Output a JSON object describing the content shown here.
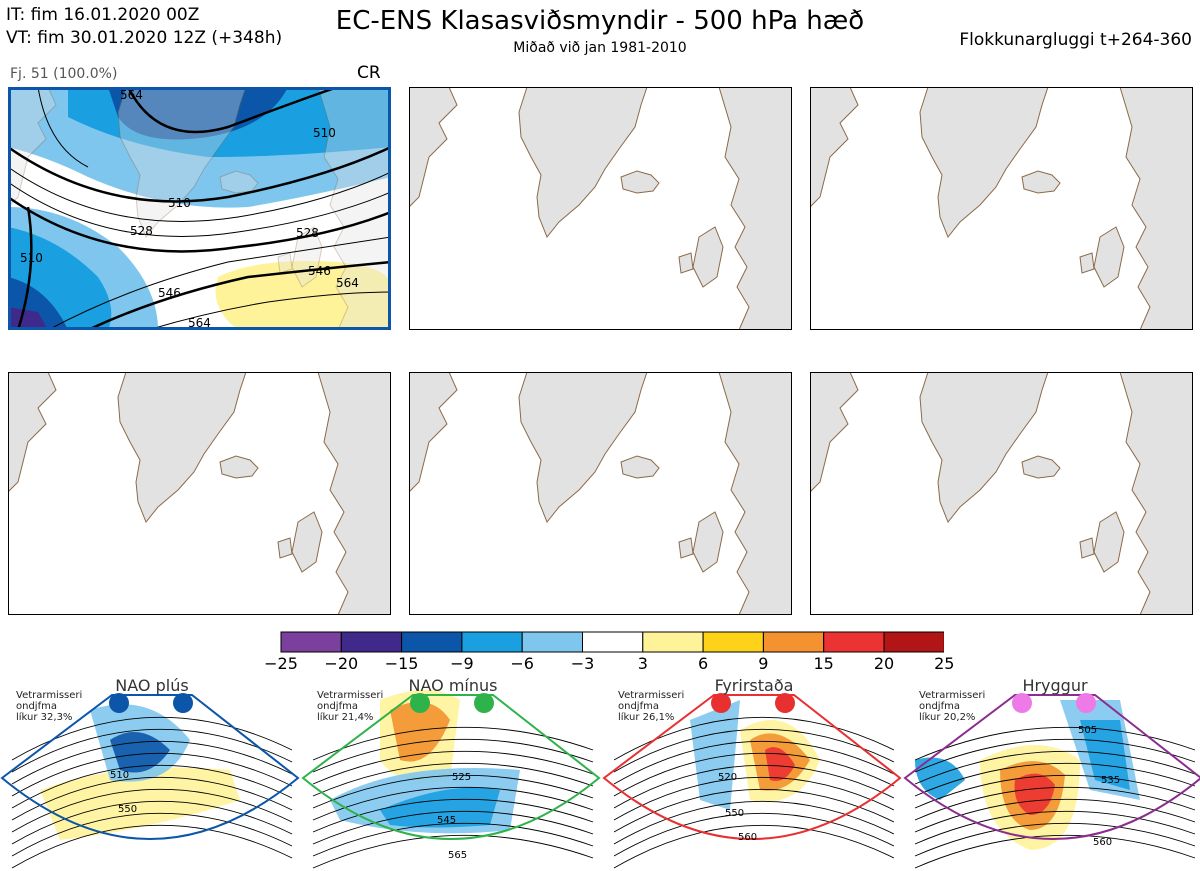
{
  "header": {
    "it_line": "IT: fim 16.01.2020 00Z",
    "vt_line": "VT: fim 30.01.2020 12Z  (+348h)",
    "title": "EC-ENS Klasasviðsmyndir - 500 hPa hæð",
    "subtitle": "Miðað við jan 1981-2010",
    "window": "Flokkunargluggi t+264-360"
  },
  "main_panel": {
    "caption": "Fj. 51 (100.0%)",
    "code": "CR",
    "contour_labels": [
      "510",
      "528",
      "546",
      "564",
      "510",
      "528",
      "546",
      "564",
      "510",
      "564"
    ]
  },
  "colorbar": {
    "ticks": [
      "−25",
      "−20",
      "−15",
      "−9",
      "−6",
      "−3",
      "3",
      "6",
      "9",
      "15",
      "20",
      "25"
    ],
    "colors": [
      "#7b3f9e",
      "#3f2a8c",
      "#0b56a8",
      "#1a9fe0",
      "#7fc6ee",
      "#ffffff",
      "#fff39a",
      "#ffd21a",
      "#f3922e",
      "#ec3333",
      "#b11515"
    ]
  },
  "regimes": [
    {
      "name": "NAO plús",
      "note1": "Vetrarmisseri",
      "note2": "ondjfma",
      "note3": "líkur 32,3%",
      "labels": [
        "510",
        "550"
      ],
      "color": "#0b56a8"
    },
    {
      "name": "NAO mínus",
      "note1": "Vetrarmisseri",
      "note2": "ondjfma",
      "note3": "líkur 21,4%",
      "labels": [
        "525",
        "545",
        "565"
      ],
      "color": "#2db34a"
    },
    {
      "name": "Fyrirstaða",
      "note1": "Vetrarmisseri",
      "note2": "ondjfma",
      "note3": "líkur 26,1%",
      "labels": [
        "520",
        "550",
        "560"
      ],
      "color": "#e83030"
    },
    {
      "name": "Hryggur",
      "note1": "Vetrarmisseri",
      "note2": "ondjfma",
      "note3": "líkur 20,2%",
      "labels": [
        "505",
        "535",
        "560"
      ],
      "color": "#8b2d8f"
    }
  ]
}
